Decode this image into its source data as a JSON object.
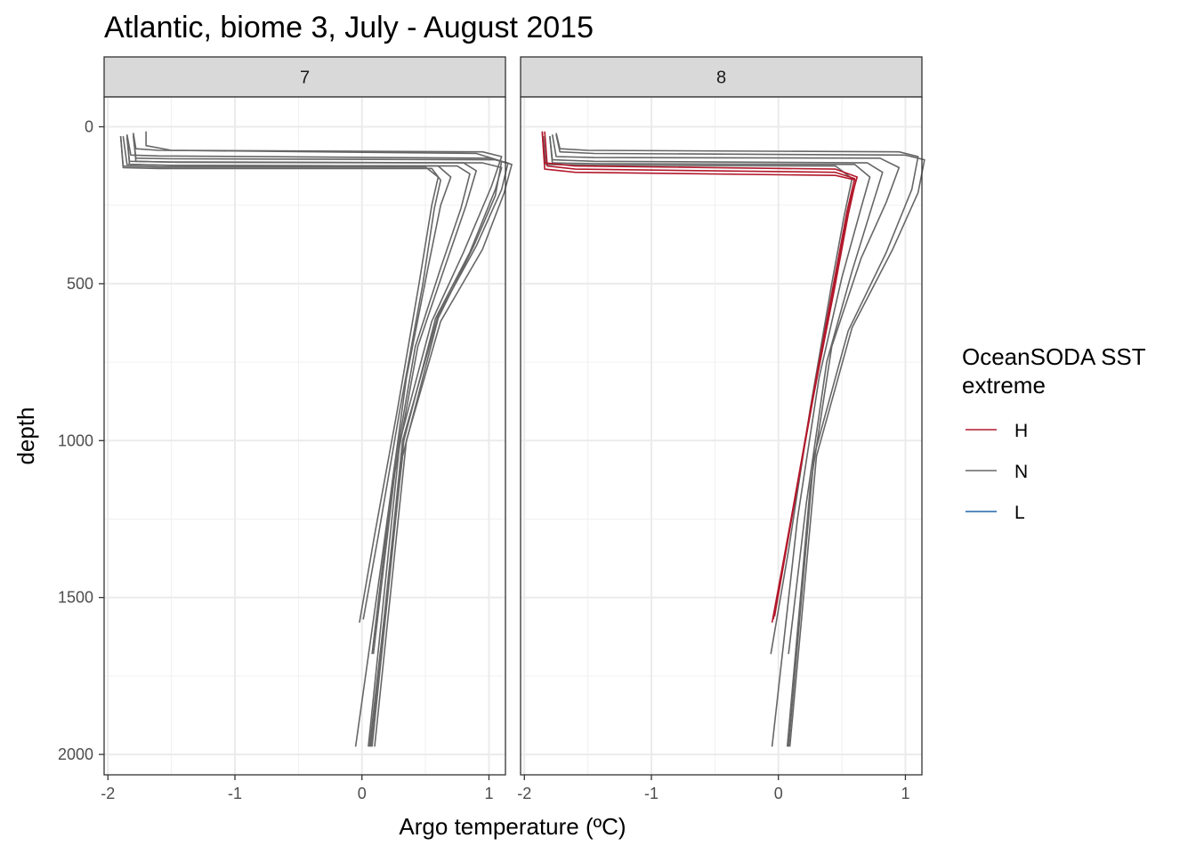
{
  "chart_data": {
    "type": "line",
    "title": "Atlantic, biome 3, July - August 2015",
    "xlabel": "Argo temperature (ºC)",
    "ylabel": "depth",
    "xlim": [
      -2.03,
      1.13
    ],
    "ylim": [
      2065,
      -95
    ],
    "y_reversed": true,
    "grid": true,
    "x_ticks": [
      -2,
      -1,
      0,
      1
    ],
    "x_tick_labels": [
      "-2",
      "-1",
      "0",
      "1"
    ],
    "y_ticks": [
      0,
      500,
      1000,
      1500,
      2000
    ],
    "y_tick_labels": [
      "0",
      "500",
      "1000",
      "1500",
      "2000"
    ],
    "legend": {
      "title_lines": [
        "OceanSODA SST",
        "extreme"
      ],
      "position": "right",
      "entries": [
        {
          "label": "H",
          "color": "#b2182b"
        },
        {
          "label": "N",
          "color": "#666666"
        },
        {
          "label": "L",
          "color": "#2166ac"
        }
      ]
    },
    "panels": [
      {
        "strip": "7",
        "series": [
          {
            "extreme": "N",
            "points": [
              [
                -1.8,
                20
              ],
              [
                -1.78,
                70
              ],
              [
                -1.6,
                75
              ],
              [
                0.95,
                80
              ],
              [
                1.1,
                95
              ],
              [
                1.02,
                190
              ],
              [
                0.8,
                400
              ],
              [
                0.55,
                620
              ],
              [
                0.3,
                1000
              ],
              [
                0.05,
                1975
              ]
            ]
          },
          {
            "extreme": "N",
            "points": [
              [
                -1.85,
                25
              ],
              [
                -1.82,
                90
              ],
              [
                -1.6,
                93
              ],
              [
                1.0,
                100
              ],
              [
                1.15,
                115
              ],
              [
                1.1,
                200
              ],
              [
                0.9,
                380
              ],
              [
                0.6,
                600
              ],
              [
                0.32,
                1000
              ],
              [
                0.07,
                1975
              ]
            ]
          },
          {
            "extreme": "N",
            "points": [
              [
                -1.8,
                30
              ],
              [
                -1.78,
                100
              ],
              [
                -1.5,
                102
              ],
              [
                1.05,
                105
              ],
              [
                1.18,
                120
              ],
              [
                1.12,
                210
              ],
              [
                0.95,
                390
              ],
              [
                0.62,
                620
              ],
              [
                0.35,
                1000
              ],
              [
                0.1,
                1975
              ]
            ]
          },
          {
            "extreme": "N",
            "points": [
              [
                -1.85,
                35
              ],
              [
                -1.83,
                110
              ],
              [
                -1.55,
                112
              ],
              [
                0.95,
                115
              ],
              [
                1.1,
                130
              ],
              [
                1.05,
                200
              ],
              [
                0.85,
                400
              ],
              [
                0.58,
                610
              ],
              [
                0.33,
                1000
              ],
              [
                0.08,
                1975
              ]
            ]
          },
          {
            "extreme": "N",
            "points": [
              [
                -1.9,
                30
              ],
              [
                -1.88,
                125
              ],
              [
                -1.6,
                128
              ],
              [
                0.5,
                128
              ],
              [
                0.6,
                160
              ],
              [
                0.55,
                250
              ],
              [
                0.45,
                500
              ],
              [
                0.28,
                900
              ],
              [
                0.1,
                1300
              ],
              [
                -0.02,
                1580
              ]
            ]
          },
          {
            "extreme": "N",
            "points": [
              [
                -1.9,
                30
              ],
              [
                -1.88,
                130
              ],
              [
                -1.6,
                133
              ],
              [
                0.55,
                133
              ],
              [
                0.62,
                170
              ],
              [
                0.57,
                260
              ],
              [
                0.48,
                500
              ],
              [
                0.3,
                900
              ],
              [
                0.13,
                1300
              ],
              [
                0.01,
                1570
              ]
            ]
          },
          {
            "extreme": "N",
            "points": [
              [
                -1.85,
                25
              ],
              [
                -1.83,
                120
              ],
              [
                -1.5,
                123
              ],
              [
                0.75,
                125
              ],
              [
                0.85,
                150
              ],
              [
                0.78,
                260
              ],
              [
                0.62,
                450
              ],
              [
                0.42,
                700
              ],
              [
                0.25,
                1100
              ],
              [
                0.08,
                1680
              ]
            ]
          },
          {
            "extreme": "N",
            "points": [
              [
                -1.8,
                20
              ],
              [
                -1.78,
                110
              ],
              [
                -1.45,
                113
              ],
              [
                0.8,
                115
              ],
              [
                0.9,
                140
              ],
              [
                0.82,
                250
              ],
              [
                0.65,
                450
              ],
              [
                0.44,
                700
              ],
              [
                0.26,
                1100
              ],
              [
                0.09,
                1680
              ]
            ]
          },
          {
            "extreme": "N",
            "points": [
              [
                -1.88,
                30
              ],
              [
                -1.85,
                120
              ],
              [
                -1.5,
                123
              ],
              [
                0.6,
                125
              ],
              [
                0.7,
                160
              ],
              [
                0.62,
                250
              ],
              [
                0.52,
                450
              ],
              [
                0.35,
                800
              ],
              [
                0.15,
                1400
              ],
              [
                -0.05,
                1975
              ]
            ]
          },
          {
            "extreme": "N",
            "points": [
              [
                -1.7,
                15
              ],
              [
                -1.7,
                60
              ],
              [
                -1.5,
                75
              ],
              [
                0.9,
                85
              ],
              [
                1.1,
                110
              ],
              [
                1.05,
                220
              ],
              [
                0.88,
                380
              ],
              [
                0.6,
                610
              ],
              [
                0.32,
                1050
              ],
              [
                0.06,
                1975
              ]
            ]
          }
        ]
      },
      {
        "strip": "8",
        "series": [
          {
            "extreme": "N",
            "points": [
              [
                -1.75,
                20
              ],
              [
                -1.72,
                70
              ],
              [
                -1.5,
                75
              ],
              [
                0.95,
                80
              ],
              [
                1.1,
                95
              ],
              [
                1.05,
                200
              ],
              [
                0.85,
                400
              ],
              [
                0.55,
                650
              ],
              [
                0.28,
                1050
              ],
              [
                0.08,
                1975
              ]
            ]
          },
          {
            "extreme": "N",
            "points": [
              [
                -1.75,
                25
              ],
              [
                -1.72,
                80
              ],
              [
                -1.45,
                85
              ],
              [
                1.0,
                90
              ],
              [
                1.15,
                105
              ],
              [
                1.1,
                210
              ],
              [
                0.9,
                390
              ],
              [
                0.58,
                640
              ],
              [
                0.3,
                1050
              ],
              [
                0.09,
                1975
              ]
            ]
          },
          {
            "extreme": "N",
            "points": [
              [
                -1.78,
                25
              ],
              [
                -1.75,
                95
              ],
              [
                -1.45,
                98
              ],
              [
                0.8,
                100
              ],
              [
                0.95,
                130
              ],
              [
                0.85,
                240
              ],
              [
                0.65,
                420
              ],
              [
                0.42,
                700
              ],
              [
                0.25,
                1150
              ],
              [
                0.07,
                1975
              ]
            ]
          },
          {
            "extreme": "N",
            "points": [
              [
                -1.8,
                30
              ],
              [
                -1.78,
                105
              ],
              [
                -1.45,
                110
              ],
              [
                0.7,
                115
              ],
              [
                0.82,
                145
              ],
              [
                0.74,
                250
              ],
              [
                0.58,
                460
              ],
              [
                0.38,
                750
              ],
              [
                0.22,
                1200
              ],
              [
                0.08,
                1680
              ]
            ]
          },
          {
            "extreme": "N",
            "points": [
              [
                -1.8,
                30
              ],
              [
                -1.78,
                115
              ],
              [
                -1.4,
                118
              ],
              [
                0.6,
                120
              ],
              [
                0.72,
                160
              ],
              [
                0.65,
                260
              ],
              [
                0.5,
                480
              ],
              [
                0.32,
                800
              ],
              [
                0.15,
                1250
              ],
              [
                -0.05,
                1975
              ]
            ]
          },
          {
            "extreme": "N",
            "points": [
              [
                -1.85,
                30
              ],
              [
                -1.83,
                120
              ],
              [
                -1.4,
                123
              ],
              [
                0.45,
                125
              ],
              [
                0.58,
                165
              ],
              [
                0.52,
                280
              ],
              [
                0.42,
                500
              ],
              [
                0.25,
                900
              ],
              [
                0.08,
                1350
              ],
              [
                -0.06,
                1680
              ]
            ]
          },
          {
            "extreme": "H",
            "points": [
              [
                -1.86,
                15
              ],
              [
                -1.84,
                115
              ],
              [
                -1.6,
                125
              ],
              [
                0.45,
                135
              ],
              [
                0.62,
                160
              ],
              [
                0.55,
                260
              ],
              [
                0.44,
                500
              ],
              [
                0.28,
                850
              ],
              [
                0.1,
                1250
              ],
              [
                -0.05,
                1580
              ]
            ]
          },
          {
            "extreme": "H",
            "points": [
              [
                -1.84,
                15
              ],
              [
                -1.82,
                125
              ],
              [
                -1.6,
                135
              ],
              [
                0.45,
                145
              ],
              [
                0.6,
                165
              ],
              [
                0.54,
                270
              ],
              [
                0.43,
                510
              ],
              [
                0.27,
                860
              ],
              [
                0.1,
                1250
              ],
              [
                -0.04,
                1570
              ]
            ]
          },
          {
            "extreme": "H",
            "points": [
              [
                -1.86,
                15
              ],
              [
                -1.84,
                135
              ],
              [
                -1.6,
                145
              ],
              [
                0.45,
                155
              ],
              [
                0.61,
                170
              ],
              [
                0.55,
                280
              ],
              [
                0.44,
                520
              ],
              [
                0.27,
                870
              ],
              [
                0.1,
                1260
              ],
              [
                -0.03,
                1560
              ]
            ]
          }
        ]
      }
    ]
  }
}
